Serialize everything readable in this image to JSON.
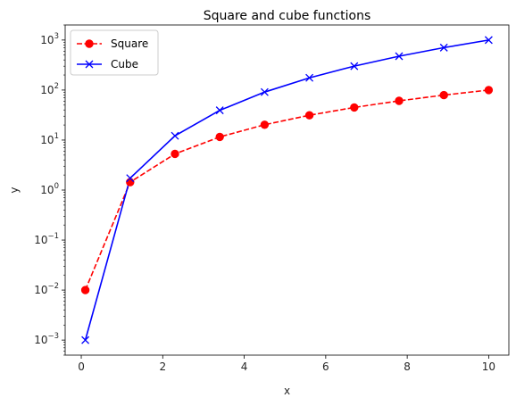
{
  "chart_data": {
    "type": "line",
    "title": "Square and cube functions",
    "xlabel": "x",
    "ylabel": "y",
    "xlim": [
      -0.395,
      10.495
    ],
    "ylim": [
      0.0005,
      2000
    ],
    "yscale": "log",
    "xticks": [
      0,
      2,
      4,
      6,
      8,
      10
    ],
    "xtick_labels": [
      "0",
      "2",
      "4",
      "6",
      "8",
      "10"
    ],
    "yticks": [
      {
        "value": 0.001,
        "base": "10",
        "exp": "−3"
      },
      {
        "value": 0.01,
        "base": "10",
        "exp": "−2"
      },
      {
        "value": 0.1,
        "base": "10",
        "exp": "−1"
      },
      {
        "value": 1,
        "base": "10",
        "exp": "0"
      },
      {
        "value": 10,
        "base": "10",
        "exp": "1"
      },
      {
        "value": 100,
        "base": "10",
        "exp": "2"
      },
      {
        "value": 1000,
        "base": "10",
        "exp": "3"
      }
    ],
    "grid": false,
    "legend": "top-left",
    "x": [
      0.1,
      1.2,
      2.3,
      3.4,
      4.5,
      5.6,
      6.7,
      7.8,
      8.9,
      10.0
    ],
    "series": [
      {
        "name": "Square",
        "color": "#ff0000",
        "linestyle": "dashed",
        "marker": "circle",
        "values": [
          0.01,
          1.44,
          5.29,
          11.56,
          20.25,
          31.36,
          44.89,
          60.84,
          79.21,
          100.0
        ]
      },
      {
        "name": "Cube",
        "color": "#0000ff",
        "linestyle": "solid",
        "marker": "x",
        "values": [
          0.001,
          1.728,
          12.167,
          39.304,
          91.125,
          175.616,
          300.763,
          474.552,
          704.969,
          1000.0
        ]
      }
    ]
  }
}
